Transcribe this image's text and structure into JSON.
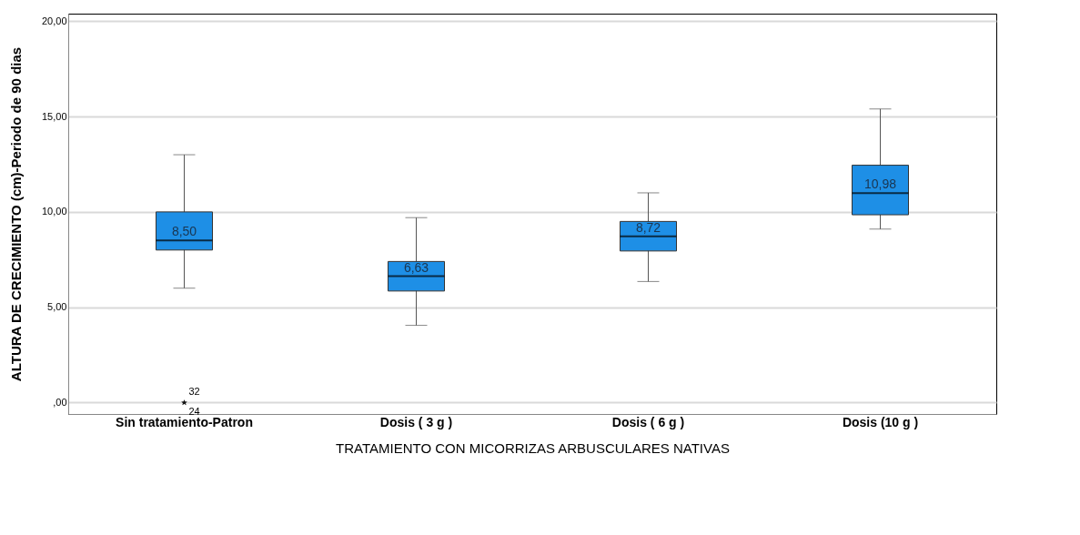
{
  "chart_data": {
    "type": "box",
    "xlabel": "TRATAMIENTO CON MICORRIZAS ARBUSCULARES NATIVAS",
    "ylabel": "ALTURA DE CRECIMIENTO (cm)-Periodo de 90 dias",
    "categories": [
      "Sin tratamiento-Patron",
      "Dosis ( 3 g )",
      "Dosis ( 6 g )",
      "Dosis (10 g )"
    ],
    "color": "#1e8fe6",
    "boxes": [
      {
        "low": 6.0,
        "q1": 8.0,
        "median": 8.5,
        "q3": 10.0,
        "high": 13.0,
        "outliers": [
          0,
          0
        ]
      },
      {
        "low": 4.05,
        "q1": 5.85,
        "median": 6.63,
        "q3": 7.4,
        "high": 9.7
      },
      {
        "low": 6.35,
        "q1": 7.95,
        "median": 8.72,
        "q3": 9.5,
        "high": 11.0
      },
      {
        "low": 9.1,
        "q1": 9.85,
        "median": 10.98,
        "q3": 12.45,
        "high": 15.4
      }
    ],
    "ylim": [
      -0.6,
      20.4
    ],
    "yticks": [
      {
        "value": 0,
        "label": ",00"
      },
      {
        "value": 5,
        "label": "5,00"
      },
      {
        "value": 10,
        "label": "10,00"
      },
      {
        "value": 15,
        "label": "15,00"
      },
      {
        "value": 20,
        "label": "20,00"
      }
    ],
    "grid": "y",
    "annotations": [
      {
        "text": "8,50",
        "x": "Sin tratamiento-Patron",
        "y": 8.5
      },
      {
        "text": "6,63",
        "x": "Dosis ( 3 g )",
        "y": 6.63
      },
      {
        "text": "8,72",
        "x": "Dosis ( 6 g )",
        "y": 8.72
      },
      {
        "text": "10,98",
        "x": "Dosis (10 g )",
        "y": 10.98
      },
      "32",
      "24"
    ]
  }
}
